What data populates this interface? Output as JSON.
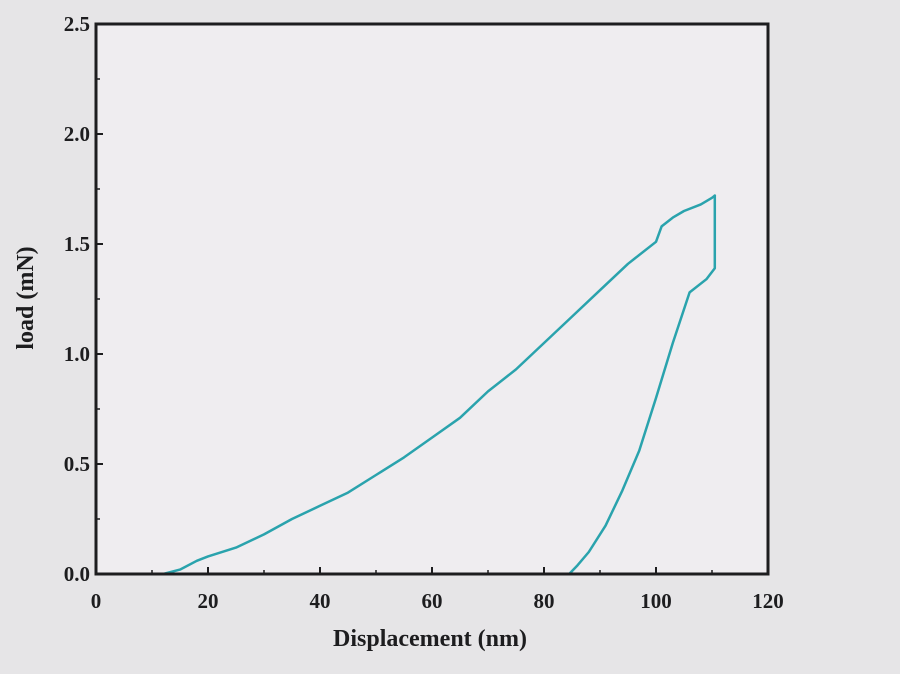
{
  "chart_data": {
    "type": "line",
    "title": "",
    "xlabel": "Displacement (nm)",
    "ylabel": "load (mN)",
    "xlim": [
      0,
      120
    ],
    "ylim": [
      0,
      2.5
    ],
    "x_ticks": [
      "0",
      "20",
      "40",
      "60",
      "80",
      "100",
      "120"
    ],
    "y_ticks": [
      "0.0",
      "0.5",
      "1.0",
      "1.5",
      "2.0",
      "2.5"
    ],
    "grid": false,
    "legend": "none",
    "colors": {
      "series": "#2aa3ad",
      "axis": "#1d1d1f",
      "plot_bg": "#efedf0"
    },
    "series": [
      {
        "x": [
          7,
          12,
          15,
          18,
          20,
          25,
          30,
          35,
          40,
          45,
          50,
          55,
          60,
          65,
          70,
          75,
          80,
          85,
          90,
          95,
          100,
          101,
          103,
          105,
          108,
          110,
          110.5
        ],
        "y": [
          0.0,
          0.0,
          0.02,
          0.06,
          0.08,
          0.12,
          0.18,
          0.25,
          0.31,
          0.37,
          0.45,
          0.53,
          0.62,
          0.71,
          0.83,
          0.93,
          1.05,
          1.17,
          1.29,
          1.41,
          1.51,
          1.58,
          1.62,
          1.65,
          1.68,
          1.71,
          1.72
        ]
      },
      {
        "x": [
          110.5,
          110.5,
          109,
          106,
          103,
          100,
          97,
          94,
          91,
          88,
          86,
          84.5
        ],
        "y": [
          1.72,
          1.39,
          1.34,
          1.28,
          1.05,
          0.8,
          0.56,
          0.38,
          0.22,
          0.1,
          0.04,
          0.0
        ]
      }
    ]
  }
}
